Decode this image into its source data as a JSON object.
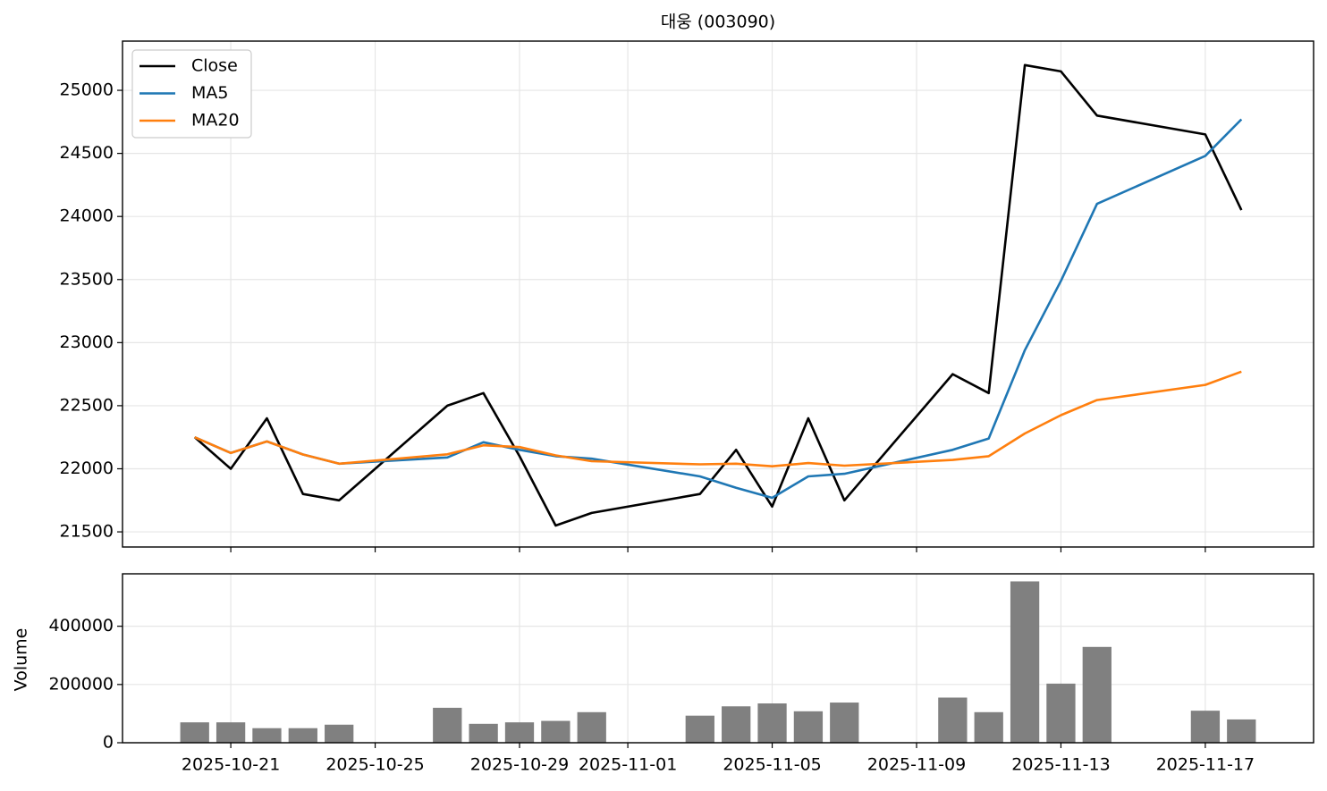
{
  "chart_data": [
    {
      "type": "line",
      "title": "대웅 (003090)",
      "x": [
        "2025-10-20",
        "2025-10-21",
        "2025-10-22",
        "2025-10-23",
        "2025-10-24",
        "2025-10-27",
        "2025-10-28",
        "2025-10-29",
        "2025-10-30",
        "2025-10-31",
        "2025-11-03",
        "2025-11-04",
        "2025-11-05",
        "2025-11-06",
        "2025-11-07",
        "2025-11-10",
        "2025-11-11",
        "2025-11-12",
        "2025-11-13",
        "2025-11-14",
        "2025-11-17",
        "2025-11-18"
      ],
      "series": [
        {
          "name": "Close",
          "color": "#000000",
          "values": [
            22250,
            22000,
            22400,
            21800,
            21750,
            22500,
            22600,
            22100,
            21550,
            21650,
            21800,
            22150,
            21700,
            22400,
            21750,
            22750,
            22600,
            25200,
            25150,
            24800,
            24650,
            24050
          ]
        },
        {
          "name": "MA5",
          "color": "#1f77b4",
          "values": [
            22250,
            22125,
            22217,
            22113,
            22040,
            22090,
            22210,
            22150,
            22100,
            22080,
            21940,
            21850,
            21770,
            21940,
            21960,
            22150,
            22240,
            22940,
            23490,
            24100,
            24480,
            24770
          ]
        },
        {
          "name": "MA20",
          "color": "#ff7f0e",
          "values": [
            22250,
            22125,
            22217,
            22113,
            22040,
            22115,
            22186,
            22172,
            22106,
            22060,
            22035,
            22040,
            22020,
            22045,
            22025,
            22070,
            22100,
            22280,
            22425,
            22545,
            22665,
            22770
          ]
        }
      ],
      "xlim": [
        "2025-10-18",
        "2025-11-20"
      ],
      "xticks": [
        "2025-10-21",
        "2025-10-25",
        "2025-10-29",
        "2025-11-01",
        "2025-11-05",
        "2025-11-09",
        "2025-11-13",
        "2025-11-17"
      ],
      "ylim": [
        21380,
        25390
      ],
      "yticks": [
        21500,
        22000,
        22500,
        23000,
        23500,
        24000,
        24500,
        25000
      ],
      "grid": true,
      "legend": "upper left"
    },
    {
      "type": "bar",
      "ylabel": "Volume",
      "color": "#808080",
      "x": [
        "2025-10-20",
        "2025-10-21",
        "2025-10-22",
        "2025-10-23",
        "2025-10-24",
        "2025-10-27",
        "2025-10-28",
        "2025-10-29",
        "2025-10-30",
        "2025-10-31",
        "2025-11-03",
        "2025-11-04",
        "2025-11-05",
        "2025-11-06",
        "2025-11-07",
        "2025-11-10",
        "2025-11-11",
        "2025-11-12",
        "2025-11-13",
        "2025-11-14",
        "2025-11-17",
        "2025-11-18"
      ],
      "values": [
        70000,
        70000,
        50000,
        50000,
        62000,
        120000,
        65000,
        70000,
        75000,
        105000,
        93000,
        125000,
        135000,
        108000,
        138000,
        155000,
        105000,
        554000,
        203000,
        329000,
        110000,
        80000
      ],
      "xlim": [
        "2025-10-18",
        "2025-11-20"
      ],
      "xticks": [
        "2025-10-21",
        "2025-10-25",
        "2025-10-29",
        "2025-11-01",
        "2025-11-05",
        "2025-11-09",
        "2025-11-13",
        "2025-11-17"
      ],
      "ylim": [
        0,
        580000
      ],
      "yticks": [
        0,
        200000,
        400000
      ],
      "grid": true
    }
  ]
}
